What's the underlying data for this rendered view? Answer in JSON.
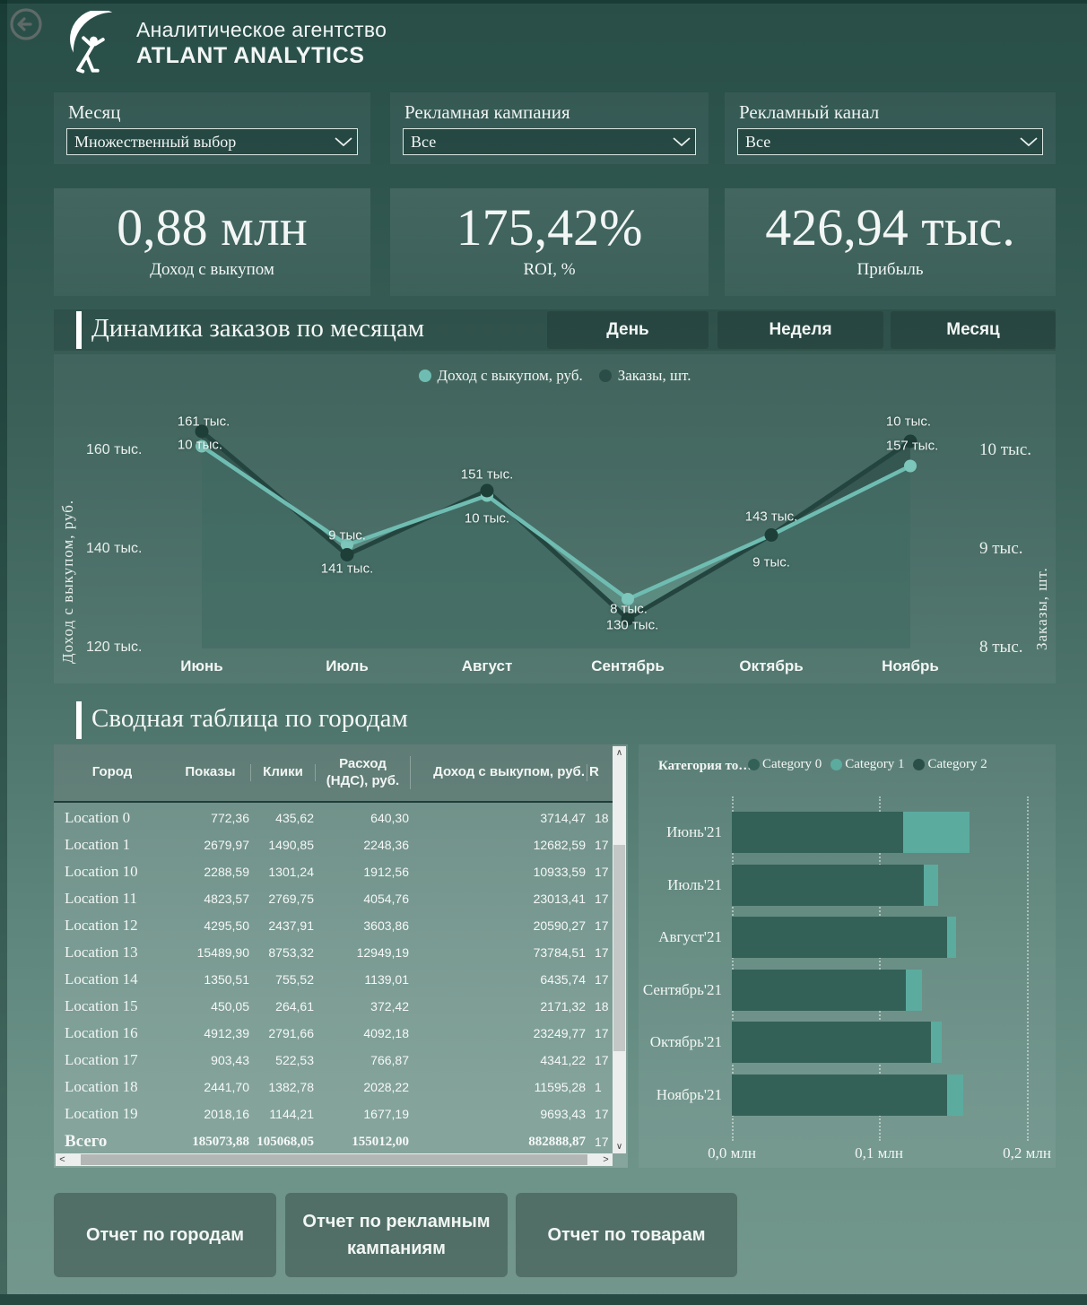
{
  "header": {
    "agency": "Аналитическое агентство",
    "brand": "ATLANT ANALYTICS"
  },
  "icons": {
    "back": "←",
    "dropdown_chevron": "⌄",
    "scroll_up": "∧",
    "scroll_down": "∨",
    "scroll_left": "<",
    "scroll_right": ">"
  },
  "filters": [
    {
      "label": "Месяц",
      "value": "Множественный выбор"
    },
    {
      "label": "Рекламная кампания",
      "value": "Все"
    },
    {
      "label": "Рекламный канал",
      "value": "Все"
    }
  ],
  "kpis": [
    {
      "value": "0,88 млн",
      "label": "Доход с выкупом"
    },
    {
      "value": "175,42%",
      "label": "ROI, %"
    },
    {
      "value": "426,94 тыс.",
      "label": "Прибыль"
    }
  ],
  "line_section": {
    "title": "Динамика заказов по месяцам",
    "buttons": [
      "День",
      "Неделя",
      "Месяц"
    ]
  },
  "table_section": {
    "title": "Сводная таблица по городам"
  },
  "chart_data": [
    {
      "type": "line",
      "title": "Динамика заказов по месяцам",
      "categories": [
        "Июнь",
        "Июль",
        "Август",
        "Сентябрь",
        "Октябрь",
        "Ноябрь"
      ],
      "series": [
        {
          "name": "Доход с выкупом, руб.",
          "axis": "left",
          "color": "#6fbdb2",
          "marker_color": "#7cc6bb",
          "area_fill": "rgba(130,200,188,0.28)",
          "values": [
            161,
            141,
            151,
            130,
            143,
            157
          ],
          "labels": [
            "161 тыс.",
            "141 тыс.",
            "151 тыс.",
            "130 тыс.",
            "143 тыс.",
            "157 тыс."
          ]
        },
        {
          "name": "Заказы, шт.",
          "axis": "right",
          "color": "#24453f",
          "marker_color": "#1e3e38",
          "area_fill": "rgba(18,44,39,0.30)",
          "values": [
            10.2,
            8.95,
            9.6,
            8.3,
            9.15,
            10.1
          ],
          "labels": [
            "10 тыс.",
            "9 тыс.",
            "10 тыс.",
            "8 тыс.",
            "9 тыс.",
            "10 тыс."
          ]
        }
      ],
      "y_left": {
        "title": "Доход с выкупом, руб.",
        "tick_labels": [
          "160 тыс.",
          "140 тыс.",
          "120 тыс."
        ],
        "tick_values": [
          160,
          140,
          120
        ]
      },
      "y_right": {
        "title": "Заказы, шт.",
        "tick_labels": [
          "10 тыс.",
          "9 тыс.",
          "8 тыс."
        ],
        "tick_values": [
          10,
          9,
          8
        ]
      },
      "legend_position": "top-center",
      "grid": false
    },
    {
      "type": "bar",
      "orientation": "horizontal",
      "stacked": true,
      "title": "Категория то…",
      "categories": [
        "Июнь'21",
        "Июль'21",
        "Август'21",
        "Сентябрь'21",
        "Октябрь'21",
        "Ноябрь'21"
      ],
      "series": [
        {
          "name": "Category 0",
          "color": "#336158",
          "values": [
            0.116,
            0.13,
            0.146,
            0.118,
            0.135,
            0.146
          ]
        },
        {
          "name": "Category 1",
          "color": "#5cab9f",
          "values": [
            0.045,
            0.01,
            0.006,
            0.011,
            0.007,
            0.011
          ]
        },
        {
          "name": "Category 2",
          "color": "#2a4f48",
          "values": [
            0,
            0,
            0,
            0,
            0,
            0
          ]
        }
      ],
      "x_ticks": [
        "0,0 млн",
        "0,1 млн",
        "0,2 млн"
      ],
      "x_tick_values": [
        0,
        0.1,
        0.2
      ],
      "xlim": [
        0,
        0.2
      ],
      "unit": "млн",
      "grid": "dotted-vertical",
      "legend_position": "top"
    }
  ],
  "table": {
    "headers": [
      "Город",
      "Показы",
      "Клики",
      "Расход (НДС), руб.",
      "Доход с выкупом, руб.",
      "R"
    ],
    "rows": [
      [
        "Location 0",
        "772,36",
        "435,62",
        "640,30",
        "3714,47",
        "18"
      ],
      [
        "Location 1",
        "2679,97",
        "1490,85",
        "2248,36",
        "12682,59",
        "17"
      ],
      [
        "Location 10",
        "2288,59",
        "1301,24",
        "1912,56",
        "10933,59",
        "17"
      ],
      [
        "Location 11",
        "4823,57",
        "2769,75",
        "4054,76",
        "23013,41",
        "17"
      ],
      [
        "Location 12",
        "4295,50",
        "2437,91",
        "3603,86",
        "20590,27",
        "17"
      ],
      [
        "Location 13",
        "15489,90",
        "8753,32",
        "12949,19",
        "73784,51",
        "17"
      ],
      [
        "Location 14",
        "1350,51",
        "755,52",
        "1139,01",
        "6435,74",
        "17"
      ],
      [
        "Location 15",
        "450,05",
        "264,61",
        "372,42",
        "2171,32",
        "18"
      ],
      [
        "Location 16",
        "4912,39",
        "2791,66",
        "4092,18",
        "23249,77",
        "17"
      ],
      [
        "Location 17",
        "903,43",
        "522,53",
        "766,87",
        "4341,22",
        "17"
      ],
      [
        "Location 18",
        "2441,70",
        "1382,78",
        "2028,22",
        "11595,28",
        "1"
      ],
      [
        "Location 19",
        "2018,16",
        "1144,21",
        "1677,19",
        "9693,43",
        "17"
      ]
    ],
    "total": [
      "Всего",
      "185073,88",
      "105068,05",
      "155012,00",
      "882888,87",
      "17"
    ]
  },
  "bottom_buttons": [
    "Отчет по городам",
    "Отчет по рекламным кампаниям",
    "Отчет по товарам"
  ],
  "colors": {
    "accent_light_teal": "#6fbdb2",
    "accent_dark_teal": "#24453f",
    "background_top": "#294e48",
    "background_bottom": "#73978d",
    "text": "#f2f6f4"
  }
}
